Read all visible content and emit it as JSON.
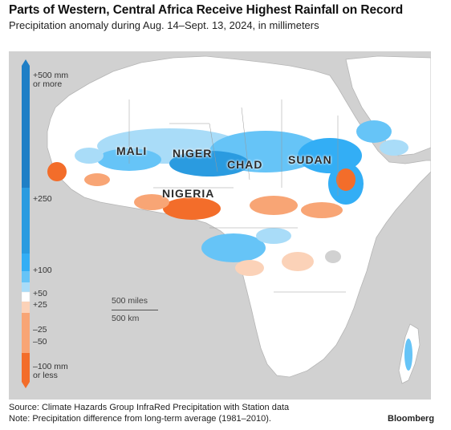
{
  "header": {
    "title": "Parts of Western, Central Africa Receive Highest Rainfall on Record",
    "subtitle": "Precipitation anomaly during Aug. 14–Sept. 13, 2024, in millimeters"
  },
  "countries": {
    "mali": "MALI",
    "niger": "NIGER",
    "chad": "CHAD",
    "sudan": "SUDAN",
    "nigeria": "NIGERIA"
  },
  "legend": {
    "labels": {
      "top_line1": "+500 mm",
      "top_line2": "or more",
      "p250": "+250",
      "p100": "+100",
      "p50": "+50",
      "p25": "+25",
      "m25": "–25",
      "m50": "–50",
      "bottom_line1": "–100 mm",
      "bottom_line2": "or less"
    },
    "colors": {
      "p500": "#1f7fc6",
      "p250": "#2a9be0",
      "p100": "#33aef5",
      "p50": "#66c4f7",
      "p25": "#a9dcf8",
      "zero": "#ffffff",
      "m25": "#fbd2b8",
      "m50": "#f8a575",
      "m100": "#f36d2a"
    }
  },
  "scale": {
    "miles": "500 miles",
    "km": "500 km"
  },
  "footer": {
    "source": "Source: Climate Hazards Group InfraRed Precipitation with Station data",
    "note": "Note: Precipitation difference from long-term average (1981–2010).",
    "brand": "Bloomberg"
  }
}
